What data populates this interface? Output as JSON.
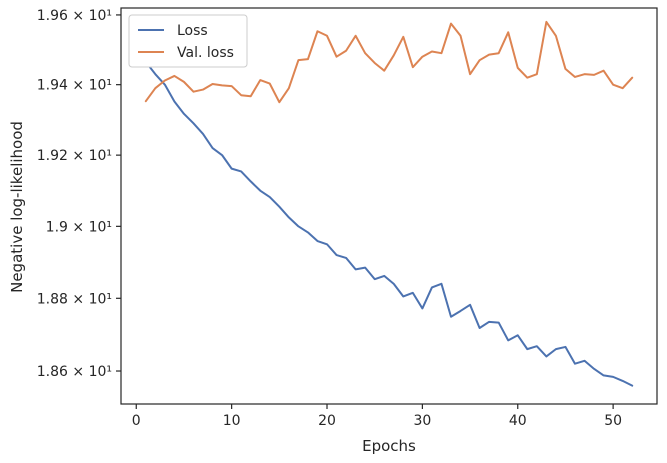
{
  "chart_data": {
    "type": "line",
    "xlabel": "Epochs",
    "ylabel": "Negative log-likelihood",
    "xlim": [
      -1.6,
      54.6
    ],
    "ylim": [
      18.51,
      19.62
    ],
    "y_scale": "log",
    "grid": false,
    "legend_position": "top-left",
    "x_ticks": [
      0,
      10,
      20,
      30,
      40,
      50
    ],
    "x_tick_labels": [
      "0",
      "10",
      "20",
      "30",
      "40",
      "50"
    ],
    "y_ticks": [
      18.6,
      18.8,
      19.0,
      19.2,
      19.4,
      19.6
    ],
    "y_tick_labels": [
      "1.86 × 10¹",
      "1.88 × 10¹",
      "1.9 × 10¹",
      "1.92 × 10¹",
      "1.94 × 10¹",
      "1.96 × 10¹"
    ],
    "x": [
      1,
      2,
      3,
      4,
      5,
      6,
      7,
      8,
      9,
      10,
      11,
      12,
      13,
      14,
      15,
      16,
      17,
      18,
      19,
      20,
      21,
      22,
      23,
      24,
      25,
      26,
      27,
      28,
      29,
      30,
      31,
      32,
      33,
      34,
      35,
      36,
      37,
      38,
      39,
      40,
      41,
      42,
      43,
      44,
      45,
      46,
      47,
      48,
      49,
      50,
      51,
      52
    ],
    "series": [
      {
        "name": "Loss",
        "color": "#4c72b0",
        "values": [
          19.465,
          19.43,
          19.4,
          19.352,
          19.317,
          19.29,
          19.26,
          19.22,
          19.2,
          19.162,
          19.154,
          19.126,
          19.1,
          19.082,
          19.055,
          19.025,
          19.0,
          18.983,
          18.959,
          18.95,
          18.92,
          18.912,
          18.88,
          18.885,
          18.853,
          18.862,
          18.84,
          18.805,
          18.815,
          18.772,
          18.83,
          18.84,
          18.749,
          18.765,
          18.782,
          18.718,
          18.735,
          18.733,
          18.684,
          18.698,
          18.66,
          18.668,
          18.64,
          18.66,
          18.666,
          18.62,
          18.628,
          18.606,
          18.588,
          18.584,
          18.573,
          18.56
        ]
      },
      {
        "name": "Val. loss",
        "color": "#dd8452",
        "values": [
          19.353,
          19.39,
          19.412,
          19.425,
          19.408,
          19.38,
          19.386,
          19.402,
          19.398,
          19.396,
          19.37,
          19.367,
          19.413,
          19.403,
          19.35,
          19.39,
          19.47,
          19.473,
          19.553,
          19.54,
          19.48,
          19.497,
          19.54,
          19.49,
          19.462,
          19.44,
          19.484,
          19.537,
          19.45,
          19.48,
          19.495,
          19.49,
          19.575,
          19.54,
          19.43,
          19.47,
          19.486,
          19.49,
          19.55,
          19.448,
          19.42,
          19.43,
          19.58,
          19.54,
          19.445,
          19.422,
          19.43,
          19.428,
          19.44,
          19.4,
          19.39,
          19.42
        ]
      }
    ]
  }
}
